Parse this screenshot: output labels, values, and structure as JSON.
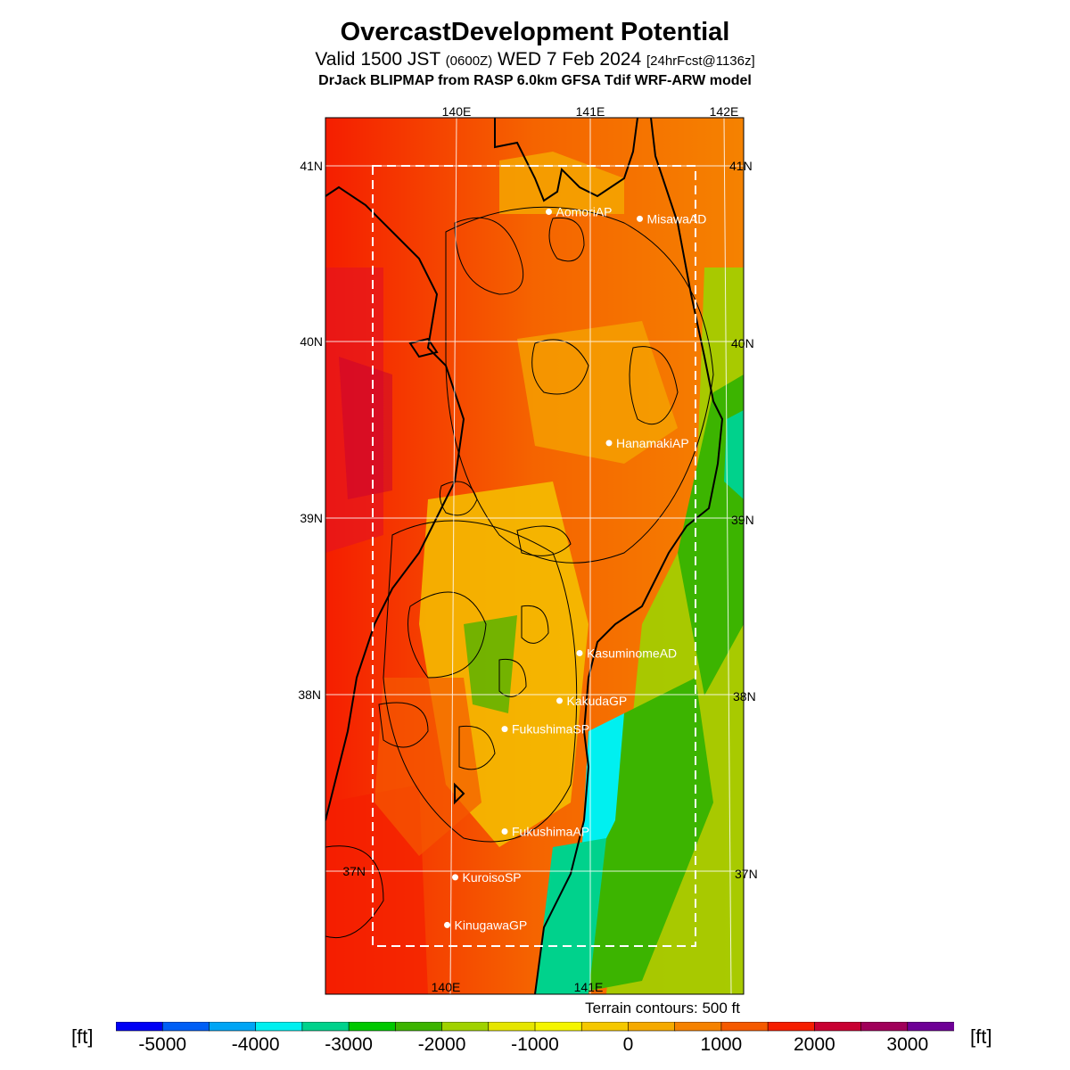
{
  "header": {
    "title": "OvercastDevelopment Potential",
    "valid_prefix": "Valid 1500 JST",
    "valid_utc": "(0600Z)",
    "valid_date": "WED 7 Feb 2024",
    "forecast_info": "[24hrFcst@1136z]",
    "model": "DrJack BLIPMAP from RASP 6.0km GFSA Tdif WRF-ARW model"
  },
  "map": {
    "lon_labels_top": [
      "140E",
      "141E",
      "142E"
    ],
    "lon_labels_bottom": [
      "140E",
      "141E"
    ],
    "lat_labels_left": [
      "41N",
      "40N",
      "39N",
      "38N",
      "37N"
    ],
    "lat_labels_right": [
      "41N",
      "40N",
      "39N",
      "38N",
      "37N"
    ],
    "sites": [
      {
        "name": "AomoriAP",
        "lat": 40.74,
        "lon": 140.69
      },
      {
        "name": "MisawaAD",
        "lat": 40.7,
        "lon": 141.37
      },
      {
        "name": "HanamakiAP",
        "lat": 39.43,
        "lon": 141.14
      },
      {
        "name": "KasuminomeAD",
        "lat": 38.24,
        "lon": 140.92
      },
      {
        "name": "KakudaGP",
        "lat": 37.97,
        "lon": 140.77
      },
      {
        "name": "FukushimaSP",
        "lat": 37.81,
        "lon": 140.36
      },
      {
        "name": "FukushimaAP",
        "lat": 37.23,
        "lon": 140.36
      },
      {
        "name": "KuroisoSP",
        "lat": 36.97,
        "lon": 139.99
      },
      {
        "name": "KinugawaGP",
        "lat": 36.7,
        "lon": 139.93
      }
    ],
    "terrain_note": "Terrain contours: 500 ft"
  },
  "colorbar": {
    "unit": "[ft]",
    "tick_labels": [
      "-5000",
      "-4000",
      "-3000",
      "-2000",
      "-1000",
      "0",
      "1000",
      "2000",
      "3000"
    ],
    "colors": [
      "#0000f5",
      "#005ff5",
      "#00a5f5",
      "#00f0f0",
      "#00d28c",
      "#00c800",
      "#3cb400",
      "#a0d200",
      "#e6e600",
      "#f5f500",
      "#f5c800",
      "#f5aa00",
      "#f58200",
      "#f55a00",
      "#f51e00",
      "#c80032",
      "#a0005a",
      "#6e0096"
    ]
  }
}
